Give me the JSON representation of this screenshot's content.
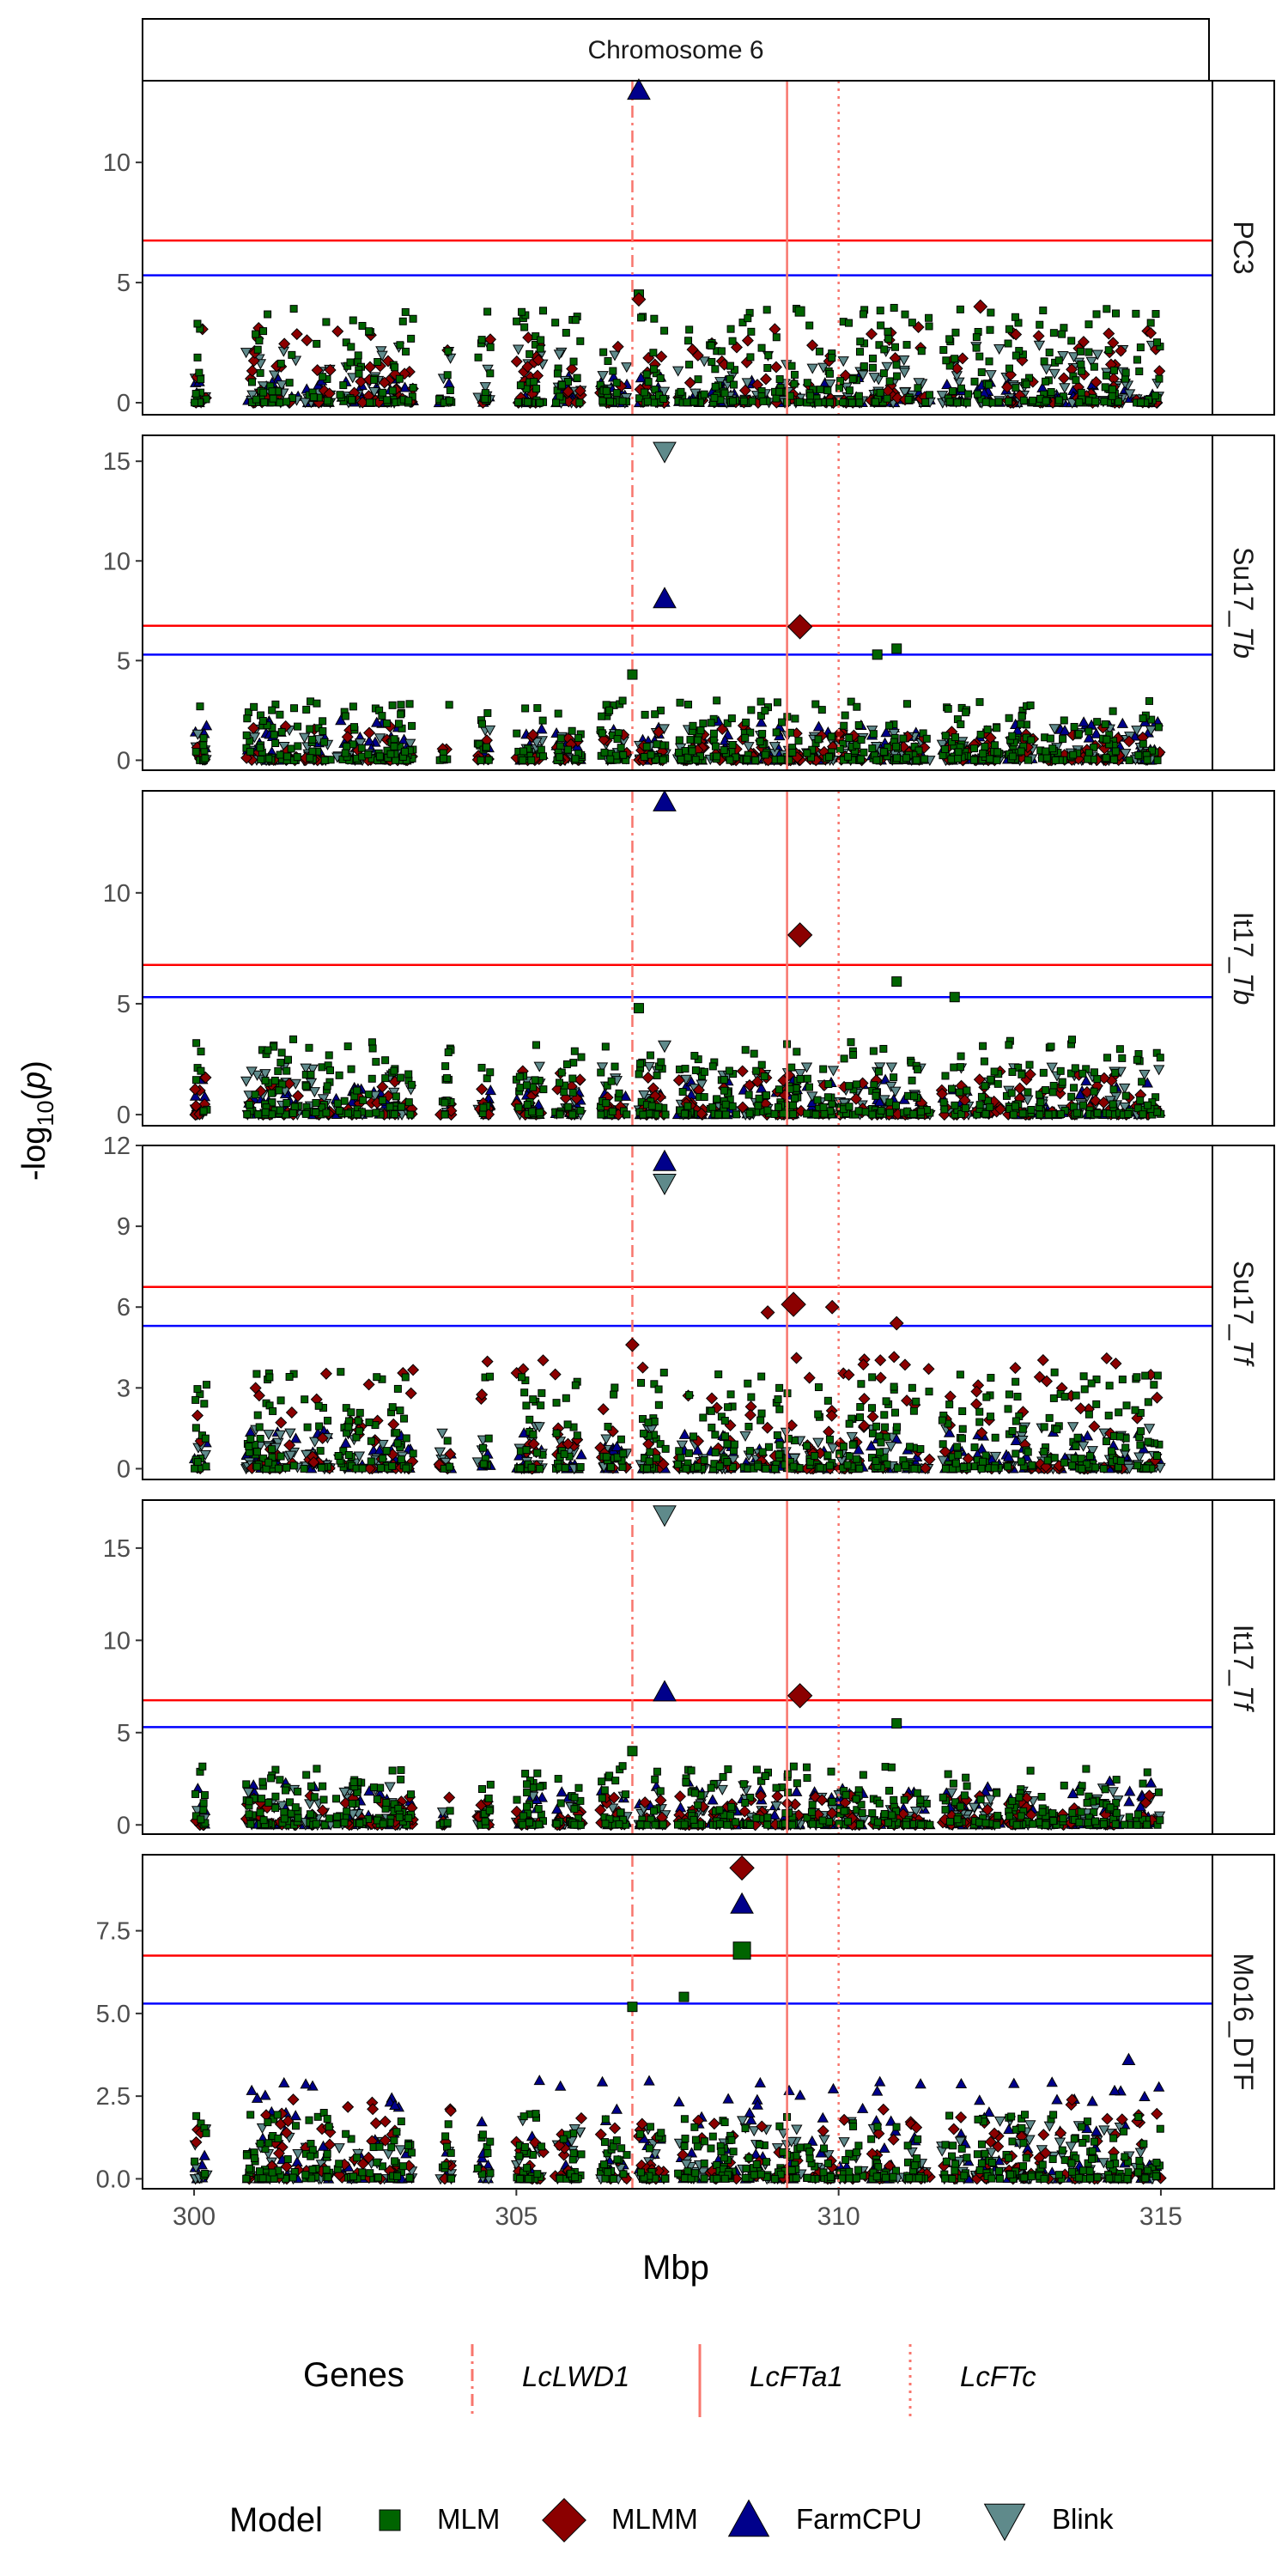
{
  "chart_data": {
    "type": "scatter",
    "title": "",
    "strip_label": "Chromosome 6",
    "xlabel": "Mbp",
    "ylabel": "-log10(p)",
    "xlim": [
      299.2,
      315.8
    ],
    "x_ticks": [
      300,
      305,
      310,
      315
    ],
    "x_tick_labels": [
      "300",
      "305",
      "310",
      "315"
    ],
    "thresholds": {
      "bonferroni": 6.75,
      "suggestive": 5.3
    },
    "genes": [
      {
        "name": "LcLWD1",
        "position": 306.8,
        "linetype": "dotdash"
      },
      {
        "name": "LcFTa1",
        "position": 309.2,
        "linetype": "solid"
      },
      {
        "name": "LcFTc",
        "position": 310.0,
        "linetype": "dotted"
      }
    ],
    "legend": {
      "genes_title": "Genes",
      "model_title": "Model",
      "position": "bottom",
      "models": [
        {
          "name": "MLM",
          "shape": "square",
          "color": "#006400"
        },
        {
          "name": "MLMM",
          "shape": "diamond",
          "color": "#8B0000"
        },
        {
          "name": "FarmCPU",
          "shape": "triangle-up",
          "color": "#00008B"
        },
        {
          "name": "Blink",
          "shape": "triangle-down",
          "color": "#5F8A8B"
        }
      ]
    },
    "facets": [
      {
        "trait": "PC3",
        "ylim": [
          -0.5,
          13.4
        ],
        "y_ticks": [
          0,
          5,
          10
        ],
        "y_tick_labels": [
          "0",
          "5",
          "10"
        ],
        "baseline": {
          "MLM": 4.0,
          "MLMM": 3.2,
          "FarmCPU": 1.1,
          "Blink": 2.4
        },
        "peaks": [
          {
            "model": "FarmCPU",
            "x": 306.9,
            "y": 13.0
          },
          {
            "model": "MLM",
            "x": 306.9,
            "y": 4.5
          },
          {
            "model": "MLMM",
            "x": 306.9,
            "y": 4.3
          },
          {
            "model": "MLM",
            "x": 309.4,
            "y": 3.8
          },
          {
            "model": "MLMM",
            "x": 312.2,
            "y": 4.0
          }
        ]
      },
      {
        "trait": "Su17_Tb",
        "ylim": [
          -0.5,
          16.3
        ],
        "y_ticks": [
          0,
          5,
          10,
          15
        ],
        "y_tick_labels": [
          "0",
          "5",
          "10",
          "15"
        ],
        "baseline": {
          "MLM": 3.0,
          "MLMM": 1.8,
          "FarmCPU": 2.0,
          "Blink": 1.6
        },
        "peaks": [
          {
            "model": "Blink",
            "x": 307.3,
            "y": 15.5
          },
          {
            "model": "FarmCPU",
            "x": 307.3,
            "y": 8.1
          },
          {
            "model": "MLMM",
            "x": 309.4,
            "y": 6.7
          },
          {
            "model": "MLM",
            "x": 310.9,
            "y": 5.6
          },
          {
            "model": "MLM",
            "x": 306.8,
            "y": 4.3
          },
          {
            "model": "MLM",
            "x": 310.6,
            "y": 5.3
          }
        ]
      },
      {
        "trait": "It17_Tb",
        "ylim": [
          -0.5,
          14.6
        ],
        "y_ticks": [
          0,
          5,
          10
        ],
        "y_tick_labels": [
          "0",
          "5",
          "10"
        ],
        "baseline": {
          "MLM": 3.4,
          "MLMM": 2.0,
          "FarmCPU": 1.6,
          "Blink": 2.2
        },
        "peaks": [
          {
            "model": "FarmCPU",
            "x": 307.3,
            "y": 14.1
          },
          {
            "model": "MLMM",
            "x": 309.4,
            "y": 8.1
          },
          {
            "model": "MLM",
            "x": 310.9,
            "y": 6.0
          },
          {
            "model": "MLM",
            "x": 306.9,
            "y": 4.8
          },
          {
            "model": "Blink",
            "x": 307.3,
            "y": 3.1
          },
          {
            "model": "MLM",
            "x": 311.8,
            "y": 5.3
          }
        ]
      },
      {
        "trait": "Su17_Tf",
        "ylim": [
          -0.4,
          12.0
        ],
        "y_ticks": [
          0,
          3,
          6,
          9,
          12
        ],
        "y_tick_labels": [
          "0",
          "3",
          "6",
          "9",
          "12"
        ],
        "baseline": {
          "MLM": 3.6,
          "MLMM": 4.2,
          "FarmCPU": 1.4,
          "Blink": 1.6
        },
        "peaks": [
          {
            "model": "FarmCPU",
            "x": 307.3,
            "y": 11.4
          },
          {
            "model": "Blink",
            "x": 307.3,
            "y": 10.6
          },
          {
            "model": "MLMM",
            "x": 309.3,
            "y": 6.1
          },
          {
            "model": "MLMM",
            "x": 309.9,
            "y": 6.0
          },
          {
            "model": "MLMM",
            "x": 308.9,
            "y": 5.8
          },
          {
            "model": "MLMM",
            "x": 310.9,
            "y": 5.4
          },
          {
            "model": "MLMM",
            "x": 306.8,
            "y": 4.6
          }
        ]
      },
      {
        "trait": "It17_Tf",
        "ylim": [
          -0.5,
          17.6
        ],
        "y_ticks": [
          0,
          5,
          10,
          15
        ],
        "y_tick_labels": [
          "0",
          "5",
          "10",
          "15"
        ],
        "baseline": {
          "MLM": 3.2,
          "MLMM": 1.6,
          "FarmCPU": 2.4,
          "Blink": 2.2
        },
        "peaks": [
          {
            "model": "Blink",
            "x": 307.3,
            "y": 16.8
          },
          {
            "model": "FarmCPU",
            "x": 307.3,
            "y": 7.2
          },
          {
            "model": "MLMM",
            "x": 309.4,
            "y": 7.0
          },
          {
            "model": "MLM",
            "x": 310.9,
            "y": 5.5
          },
          {
            "model": "MLM",
            "x": 306.8,
            "y": 4.0
          }
        ]
      },
      {
        "trait": "Mo16_DTF",
        "ylim": [
          -0.3,
          9.8
        ],
        "y_ticks": [
          0,
          2.5,
          5,
          7.5
        ],
        "y_tick_labels": [
          "0.0",
          "2.5",
          "5.0",
          "7.5"
        ],
        "baseline": {
          "MLM": 2.0,
          "MLMM": 2.4,
          "FarmCPU": 3.0,
          "Blink": 1.8
        },
        "peaks": [
          {
            "model": "MLMM",
            "x": 308.5,
            "y": 9.4
          },
          {
            "model": "FarmCPU",
            "x": 308.5,
            "y": 8.3
          },
          {
            "model": "MLM",
            "x": 308.5,
            "y": 6.9
          },
          {
            "model": "MLM",
            "x": 307.6,
            "y": 5.5
          },
          {
            "model": "MLM",
            "x": 306.8,
            "y": 5.2
          },
          {
            "model": "FarmCPU",
            "x": 314.5,
            "y": 3.6
          }
        ]
      }
    ]
  }
}
